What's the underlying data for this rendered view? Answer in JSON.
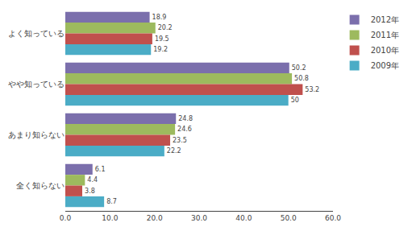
{
  "chart_data": {
    "type": "bar",
    "orientation": "horizontal",
    "categories": [
      "よく知っている",
      "やや知っている",
      "あまり知らない",
      "全く知らない"
    ],
    "series": [
      {
        "name": "2012年",
        "color": "#7b6fac",
        "values": [
          18.9,
          50.2,
          24.8,
          6.1
        ]
      },
      {
        "name": "2011年",
        "color": "#9dba5e",
        "values": [
          20.2,
          50.8,
          24.6,
          4.4
        ]
      },
      {
        "name": "2010年",
        "color": "#c0504d",
        "values": [
          19.5,
          53.2,
          23.5,
          3.8
        ]
      },
      {
        "name": "2009年",
        "color": "#4bacc6",
        "values": [
          19.2,
          50.0,
          22.2,
          8.7
        ]
      }
    ],
    "xlim": [
      0,
      60.0
    ],
    "xticks": [
      {
        "value": 0.0,
        "label": "0.0"
      },
      {
        "value": 10.0,
        "label": "10.0"
      },
      {
        "value": 20.0,
        "label": "20.0"
      },
      {
        "value": 30.0,
        "label": "30.0"
      },
      {
        "value": 40.0,
        "label": "40.0"
      },
      {
        "value": 50.0,
        "label": "50.0"
      },
      {
        "value": 60.0,
        "label": "60.0"
      }
    ],
    "data_labels": true,
    "legend": "right",
    "grid": false
  }
}
